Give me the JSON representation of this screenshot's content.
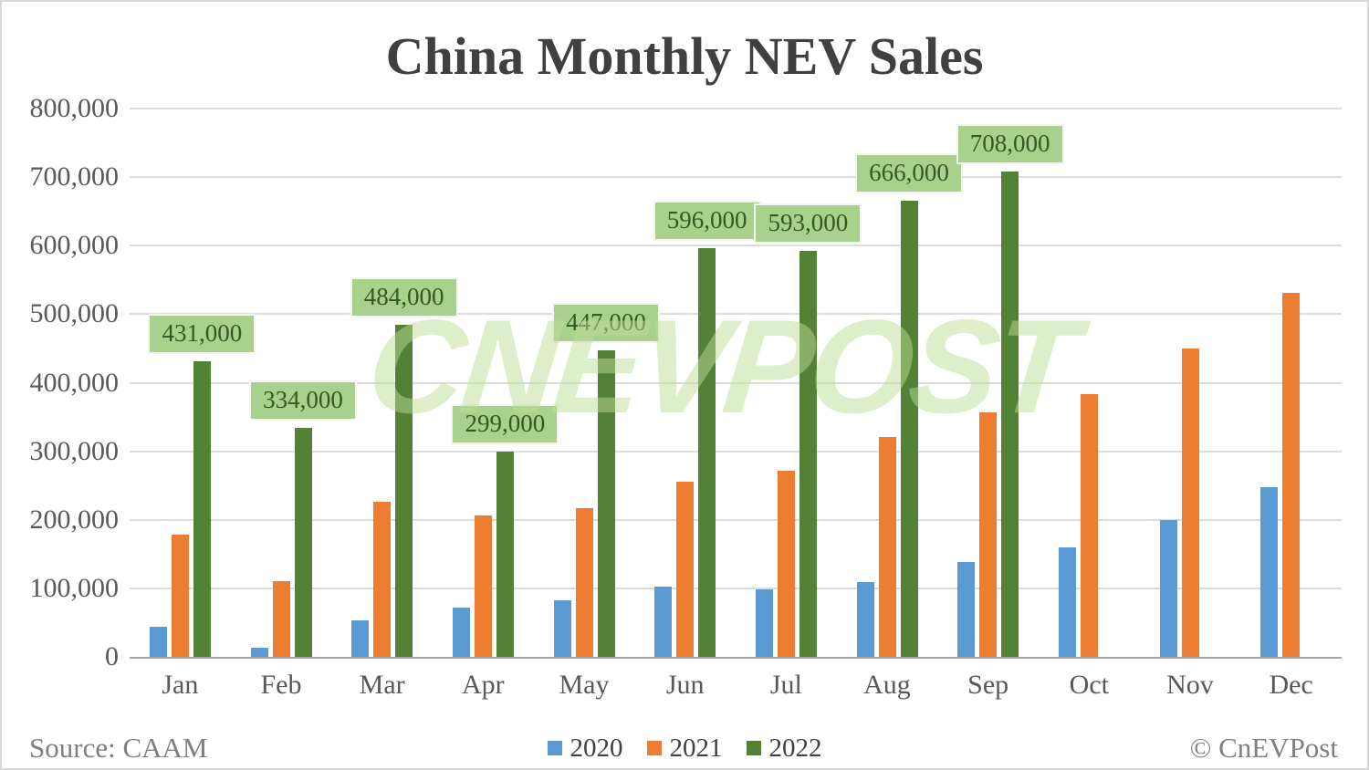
{
  "chart": {
    "title": "China Monthly NEV Sales",
    "watermark": "CNEVPOST"
  },
  "footer": {
    "source": "Source: CAAM",
    "copyright": "© CnEVPost"
  },
  "chart_data": {
    "type": "bar",
    "title": "China Monthly NEV Sales",
    "categories": [
      "Jan",
      "Feb",
      "Mar",
      "Apr",
      "May",
      "Jun",
      "Jul",
      "Aug",
      "Sep",
      "Oct",
      "Nov",
      "Dec"
    ],
    "series": [
      {
        "name": "2020",
        "color": "#5B9BD5",
        "values": [
          44000,
          13000,
          53000,
          72000,
          82000,
          102000,
          98000,
          109000,
          138000,
          160000,
          200000,
          248000
        ]
      },
      {
        "name": "2021",
        "color": "#ED7D31",
        "values": [
          179000,
          110000,
          226000,
          206000,
          217000,
          256000,
          271000,
          321000,
          357000,
          383000,
          450000,
          531000
        ]
      },
      {
        "name": "2022",
        "color": "#538135",
        "values": [
          431000,
          334000,
          484000,
          299000,
          447000,
          596000,
          593000,
          666000,
          708000,
          null,
          null,
          null
        ],
        "data_labels": [
          "431,000",
          "334,000",
          "484,000",
          "299,000",
          "447,000",
          "596,000",
          "593,000",
          "666,000",
          "708,000",
          null,
          null,
          null
        ]
      }
    ],
    "ylabel": "",
    "xlabel": "",
    "ylim": [
      0,
      800000
    ],
    "ytick_interval": 100000,
    "ytick_labels": [
      "0",
      "100,000",
      "200,000",
      "300,000",
      "400,000",
      "500,000",
      "600,000",
      "700,000",
      "800,000"
    ],
    "grid": true,
    "legend_position": "bottom",
    "data_label_style": {
      "background": "#A9D18E",
      "text_color": "#375623"
    }
  }
}
